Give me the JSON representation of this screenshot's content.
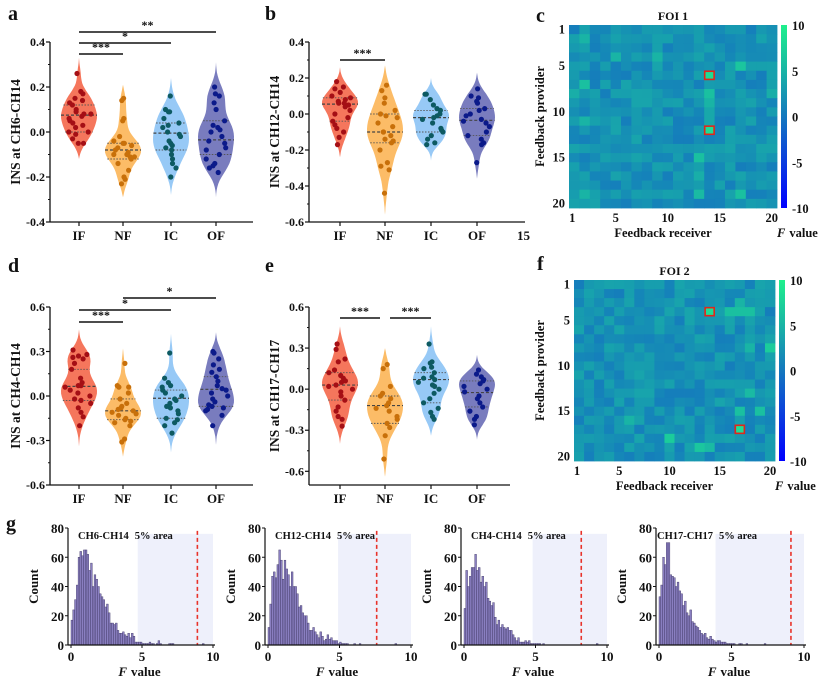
{
  "colors": {
    "IF_fill": "#f46a4e",
    "IF_dot": "#a50f15",
    "NF_fill": "#fcb65a",
    "NF_dot": "#c8700a",
    "IC_fill": "#8ec4f5",
    "IC_dot": "#0d5a62",
    "OF_fill": "#6e71b8",
    "OF_dot": "#0b1a8a",
    "hist_bar": "#8a7fc1",
    "hist_edge": "#3d3562",
    "area": "#eef0fb",
    "threshold": "#e8322a",
    "highlight": "#e0261c"
  },
  "chart_data": [
    {
      "panel": "a",
      "type": "violin",
      "ylabel": "INS at CH6-CH14",
      "categories": [
        "IF",
        "NF",
        "IC",
        "OF"
      ],
      "ylim": [
        -0.4,
        0.4
      ],
      "yticks": [
        "0.4",
        "0.2",
        "0.0",
        "-0.2",
        "-0.4"
      ],
      "yticks_values": [
        0.4,
        0.2,
        0.0,
        -0.2,
        -0.4
      ],
      "violin_range": [
        [
          -0.12,
          0.33
        ],
        [
          -0.29,
          0.21
        ],
        [
          -0.28,
          0.24
        ],
        [
          -0.29,
          0.31
        ]
      ],
      "medians": [
        0.075,
        -0.08,
        -0.005,
        -0.035
      ],
      "points": [
        [
          0.26,
          0.18,
          0.17,
          0.15,
          0.14,
          0.13,
          0.12,
          0.1,
          0.09,
          0.08,
          0.08,
          0.07,
          0.06,
          0.05,
          0.04,
          0.03,
          0.02,
          0.0,
          0.0,
          -0.01,
          -0.03,
          -0.05,
          -0.05
        ],
        [
          0.15,
          0.14,
          0.06,
          0.05,
          -0.02,
          -0.04,
          -0.05,
          -0.05,
          -0.06,
          -0.07,
          -0.08,
          -0.09,
          -0.1,
          -0.1,
          -0.11,
          -0.11,
          -0.12,
          -0.14,
          -0.17,
          -0.2,
          -0.21,
          -0.23
        ],
        [
          0.16,
          0.1,
          0.09,
          0.09,
          0.06,
          0.04,
          0.03,
          0.02,
          0.0,
          -0.01,
          -0.02,
          -0.04,
          -0.05,
          -0.06,
          -0.07,
          -0.08,
          -0.1,
          -0.12,
          -0.14,
          -0.16,
          -0.2
        ],
        [
          0.2,
          0.17,
          0.16,
          0.13,
          0.1,
          0.05,
          0.03,
          0.02,
          0.01,
          0.0,
          -0.02,
          -0.04,
          -0.05,
          -0.07,
          -0.08,
          -0.1,
          -0.12,
          -0.14,
          -0.15,
          -0.16,
          -0.18
        ]
      ],
      "significance": [
        {
          "from": "IF",
          "to": "NF",
          "label": "***",
          "level": 0
        },
        {
          "from": "IF",
          "to": "IC",
          "label": "*",
          "level": 1
        },
        {
          "from": "IF",
          "to": "OF",
          "label": "**",
          "level": 2
        }
      ]
    },
    {
      "panel": "b",
      "type": "violin",
      "ylabel": "INS at CH12-CH14",
      "categories": [
        "IF",
        "NF",
        "IC",
        "OF"
      ],
      "ylim": [
        -0.6,
        0.4
      ],
      "yticks": [
        "0.4",
        "0.2",
        "0.0",
        "-0.2",
        "-0.4",
        "-0.6"
      ],
      "yticks_values": [
        0.4,
        0.2,
        0.0,
        -0.2,
        -0.4,
        -0.6
      ],
      "violin_range": [
        [
          -0.24,
          0.26
        ],
        [
          -0.56,
          0.27
        ],
        [
          -0.26,
          0.2
        ],
        [
          -0.36,
          0.23
        ]
      ],
      "medians": [
        0.055,
        -0.1,
        -0.02,
        -0.035
      ],
      "points": [
        [
          0.18,
          0.15,
          0.14,
          0.12,
          0.1,
          0.09,
          0.08,
          0.07,
          0.06,
          0.06,
          0.05,
          0.04,
          0.02,
          0.0,
          -0.02,
          -0.04,
          -0.06,
          -0.08,
          -0.1,
          -0.13,
          -0.17
        ],
        [
          0.16,
          0.13,
          0.09,
          0.06,
          0.02,
          0.0,
          -0.01,
          -0.02,
          -0.05,
          -0.07,
          -0.1,
          -0.1,
          -0.12,
          -0.14,
          -0.15,
          -0.16,
          -0.2,
          -0.27,
          -0.29,
          -0.31,
          -0.44
        ],
        [
          0.11,
          0.11,
          0.08,
          0.05,
          0.03,
          0.02,
          0.0,
          -0.01,
          -0.02,
          -0.03,
          -0.05,
          -0.08,
          -0.09,
          -0.1,
          -0.12,
          -0.14,
          -0.16,
          -0.17
        ],
        [
          0.14,
          0.1,
          0.09,
          0.07,
          0.06,
          0.03,
          0.02,
          0.0,
          -0.01,
          -0.03,
          -0.04,
          -0.05,
          -0.07,
          -0.1,
          -0.12,
          -0.14,
          -0.16,
          -0.17,
          -0.27
        ]
      ],
      "significance": [
        {
          "from": "IF",
          "to": "NF",
          "label": "***",
          "level": 0
        }
      ]
    },
    {
      "panel": "c",
      "type": "heatmap",
      "title": "FOI 1",
      "xlabel": "Feedback receiver",
      "ylabel": "Feedback provider",
      "xticks": [
        "1",
        "5",
        "10",
        "15",
        "20"
      ],
      "yticks": [
        "1",
        "5",
        "10",
        "15",
        "20"
      ],
      "colorbar_ticks": [
        "10",
        "5",
        "0",
        "-5",
        "-10"
      ],
      "colorbar_label_italic": "F",
      "colorbar_label": "value",
      "vmin": -10,
      "vmax": 10,
      "highlighted_cells": [
        [
          6,
          14
        ],
        [
          12,
          14
        ]
      ],
      "seed": 7,
      "hot_cells": [
        [
          6,
          14,
          8.5
        ],
        [
          12,
          14,
          8.5
        ],
        [
          8,
          14,
          6
        ],
        [
          9,
          14,
          5
        ],
        [
          10,
          14,
          4
        ],
        [
          11,
          14,
          4
        ],
        [
          5,
          17,
          6.5
        ],
        [
          7,
          2,
          6
        ],
        [
          11,
          2,
          5
        ],
        [
          2,
          2,
          5
        ],
        [
          15,
          13,
          6
        ],
        [
          19,
          17,
          6
        ],
        [
          19,
          13,
          5.5
        ],
        [
          19,
          2,
          5
        ],
        [
          4,
          5,
          5
        ],
        [
          4,
          9,
          5
        ],
        [
          8,
          1,
          4.5
        ],
        [
          8,
          20,
          4.5
        ],
        [
          17,
          13,
          4.5
        ]
      ]
    },
    {
      "panel": "f",
      "type": "heatmap",
      "title": "FOI 2",
      "xlabel": "Feedback receiver",
      "ylabel": "Feedback provider",
      "xticks": [
        "1",
        "5",
        "10",
        "15",
        "20"
      ],
      "yticks": [
        "1",
        "5",
        "10",
        "15",
        "20"
      ],
      "colorbar_ticks": [
        "10",
        "5",
        "0",
        "-5",
        "-10"
      ],
      "colorbar_label_italic": "F",
      "colorbar_label": "value",
      "vmin": -10,
      "vmax": 10,
      "highlighted_cells": [
        [
          4,
          14
        ],
        [
          17,
          17
        ]
      ],
      "seed": 13,
      "hot_cells": [
        [
          4,
          14,
          8.5
        ],
        [
          17,
          17,
          8.5
        ],
        [
          4,
          16,
          6
        ],
        [
          4,
          17,
          6
        ],
        [
          4,
          18,
          6
        ],
        [
          8,
          20,
          7
        ],
        [
          15,
          17,
          6
        ],
        [
          15,
          19,
          6
        ],
        [
          13,
          18,
          5.5
        ],
        [
          18,
          10,
          7
        ],
        [
          19,
          13,
          6.5
        ],
        [
          19,
          14,
          5.5
        ],
        [
          16,
          6,
          5
        ],
        [
          3,
          17,
          5
        ],
        [
          8,
          18,
          5
        ]
      ]
    },
    {
      "panel": "d",
      "type": "violin",
      "ylabel": "INS at CH4-CH14",
      "categories": [
        "IF",
        "NF",
        "IC",
        "OF"
      ],
      "ylim": [
        -0.6,
        0.6
      ],
      "yticks": [
        "0.6",
        "0.3",
        "0.0",
        "-0.3",
        "-0.6"
      ],
      "yticks_values": [
        0.6,
        0.3,
        0.0,
        -0.3,
        -0.6
      ],
      "violin_range": [
        [
          -0.34,
          0.45
        ],
        [
          -0.41,
          0.32
        ],
        [
          -0.38,
          0.42
        ],
        [
          -0.33,
          0.43
        ]
      ],
      "medians": [
        0.065,
        -0.1,
        -0.015,
        0.045
      ],
      "points": [
        [
          0.31,
          0.28,
          0.27,
          0.26,
          0.25,
          0.22,
          0.18,
          0.12,
          0.09,
          0.07,
          0.07,
          0.06,
          0.04,
          0.02,
          0.0,
          -0.02,
          -0.03,
          -0.05,
          -0.08,
          -0.11,
          -0.14,
          -0.2
        ],
        [
          0.22,
          0.07,
          0.06,
          0.06,
          0.02,
          -0.02,
          -0.05,
          -0.07,
          -0.08,
          -0.09,
          -0.1,
          -0.11,
          -0.12,
          -0.13,
          -0.15,
          -0.16,
          -0.17,
          -0.18,
          -0.2,
          -0.29,
          -0.31
        ],
        [
          0.29,
          0.12,
          0.09,
          0.07,
          0.06,
          0.04,
          0.02,
          0.0,
          -0.02,
          -0.03,
          -0.05,
          -0.07,
          -0.08,
          -0.1,
          -0.12,
          -0.15,
          -0.16,
          -0.18,
          -0.2,
          -0.25
        ],
        [
          0.3,
          0.29,
          0.25,
          0.21,
          0.18,
          0.16,
          0.13,
          0.1,
          0.07,
          0.05,
          0.04,
          0.02,
          0.0,
          -0.02,
          -0.04,
          -0.06,
          -0.07,
          -0.08,
          -0.09,
          -0.1,
          -0.13,
          -0.2
        ]
      ],
      "significance": [
        {
          "from": "IF",
          "to": "NF",
          "label": "***",
          "level": 0
        },
        {
          "from": "IF",
          "to": "IC",
          "label": "*",
          "level": 1
        },
        {
          "from": "NF",
          "to": "OF",
          "label": "*",
          "level": 2
        }
      ]
    },
    {
      "panel": "e",
      "type": "violin",
      "ylabel": "INS at CH17-CH17",
      "categories": [
        "IF",
        "NF",
        "IC",
        "OF"
      ],
      "ylim": [
        -0.7,
        0.6
      ],
      "yticks": [
        "0.6",
        "0.3",
        "0.0",
        "-0.3",
        "-0.6"
      ],
      "yticks_values": [
        0.6,
        0.3,
        0.0,
        -0.3,
        -0.6
      ],
      "violin_range": [
        [
          -0.4,
          0.46
        ],
        [
          -0.64,
          0.3
        ],
        [
          -0.34,
          0.46
        ],
        [
          -0.37,
          0.25
        ]
      ],
      "medians": [
        0.03,
        -0.12,
        0.07,
        -0.025
      ],
      "points": [
        [
          0.33,
          0.29,
          0.22,
          0.2,
          0.14,
          0.12,
          0.1,
          0.08,
          0.06,
          0.05,
          0.03,
          0.02,
          0.0,
          -0.02,
          -0.05,
          -0.08,
          -0.13,
          -0.16,
          -0.2,
          -0.22,
          -0.27
        ],
        [
          0.18,
          0.15,
          0.02,
          -0.03,
          -0.05,
          -0.07,
          -0.1,
          -0.12,
          -0.14,
          -0.16,
          -0.2,
          -0.22,
          -0.25,
          -0.28,
          -0.34,
          -0.51
        ],
        [
          0.33,
          0.2,
          0.19,
          0.16,
          0.15,
          0.12,
          0.09,
          0.08,
          0.07,
          0.05,
          0.03,
          0.02,
          0.0,
          -0.03,
          -0.07,
          -0.1,
          -0.14,
          -0.17,
          -0.2,
          -0.22
        ],
        [
          0.14,
          0.11,
          0.09,
          0.07,
          0.06,
          0.04,
          0.02,
          0.0,
          -0.02,
          -0.05,
          -0.07,
          -0.1,
          -0.13,
          -0.16,
          -0.2,
          -0.22,
          -0.26
        ]
      ],
      "significance": [
        {
          "from": "IF",
          "to": "NF",
          "label": "***",
          "level": 0
        },
        {
          "from": "NF",
          "to": "IC",
          "label": "***",
          "level": 0
        }
      ]
    },
    {
      "panel": "g1",
      "type": "bar",
      "title": "CH6-CH14",
      "area_label": "5% area",
      "xlabel_italic": "F",
      "xlabel": "value",
      "ylabel": "Count",
      "xlim": [
        0,
        10
      ],
      "ylim": [
        0,
        80
      ],
      "xticks": [
        "0",
        "5",
        "10"
      ],
      "yticks": [
        "80",
        "60",
        "40",
        "20",
        "0"
      ],
      "area_start": 4.7,
      "threshold": 8.9,
      "bin_width": 0.125,
      "values": [
        17,
        24,
        31,
        41,
        60,
        64,
        61,
        65,
        65,
        62,
        51,
        56,
        40,
        48,
        45,
        40,
        35,
        33,
        31,
        26,
        28,
        22,
        15,
        15,
        14,
        15,
        10,
        8,
        8,
        9,
        7,
        6,
        8,
        5,
        8,
        6,
        2,
        2,
        2,
        2,
        1,
        1,
        1,
        1,
        2,
        1,
        1,
        0,
        1,
        3,
        1,
        0,
        0,
        0,
        0,
        1,
        1,
        1,
        0,
        0,
        0,
        0,
        0,
        0,
        0,
        0,
        0,
        0,
        0,
        0,
        0,
        0,
        0,
        0,
        1
      ]
    },
    {
      "panel": "g2",
      "type": "bar",
      "title": "CH12-CH14",
      "area_label": "5% area",
      "xlabel_italic": "F",
      "xlabel": "value",
      "ylabel": "Count",
      "xlim": [
        0,
        10
      ],
      "ylim": [
        0,
        80
      ],
      "xticks": [
        "0",
        "5",
        "10"
      ],
      "yticks": [
        "80",
        "60",
        "40",
        "20",
        "0"
      ],
      "area_start": 4.9,
      "threshold": 7.6,
      "bin_width": 0.125,
      "values": [
        12,
        28,
        47,
        50,
        46,
        55,
        65,
        58,
        45,
        58,
        52,
        48,
        40,
        50,
        40,
        40,
        35,
        26,
        27,
        22,
        20,
        20,
        15,
        10,
        10,
        12,
        9,
        7,
        5,
        9,
        6,
        3,
        4,
        7,
        4,
        5,
        3,
        3,
        3,
        1,
        2,
        1,
        1,
        1,
        1,
        0,
        0,
        0,
        1,
        0,
        0,
        1,
        0,
        0,
        0,
        0,
        0,
        0,
        0,
        0,
        0,
        0,
        0,
        0,
        0,
        0,
        0,
        0,
        0,
        0,
        0,
        1
      ]
    },
    {
      "panel": "g3",
      "type": "bar",
      "title": "CH4-CH14",
      "area_label": "5% area",
      "xlabel_italic": "F",
      "xlabel": "value",
      "ylabel": "Count",
      "xlim": [
        0,
        10
      ],
      "ylim": [
        0,
        80
      ],
      "xticks": [
        "0",
        "5",
        "10"
      ],
      "yticks": [
        "80",
        "60",
        "40",
        "20",
        "0"
      ],
      "area_start": 4.8,
      "threshold": 8.2,
      "bin_width": 0.125,
      "values": [
        25,
        51,
        40,
        47,
        53,
        53,
        62,
        51,
        53,
        43,
        47,
        40,
        43,
        32,
        30,
        27,
        29,
        19,
        14,
        17,
        12,
        14,
        12,
        11,
        12,
        10,
        10,
        7,
        5,
        3,
        5,
        2,
        2,
        2,
        3,
        2,
        3,
        1,
        1,
        1,
        1,
        1,
        1,
        0,
        1,
        0,
        0,
        0,
        0,
        0,
        0,
        0,
        0,
        0,
        0,
        0,
        0,
        0,
        0,
        0,
        0,
        0,
        0,
        0,
        0,
        0,
        0,
        0,
        0,
        0,
        0,
        0,
        0,
        0,
        1
      ]
    },
    {
      "panel": "g4",
      "type": "bar",
      "title": "CH17-CH17",
      "area_label": "5% area",
      "xlabel_italic": "F",
      "xlabel": "value",
      "ylabel": "Count",
      "xlim": [
        0,
        10
      ],
      "ylim": [
        0,
        80
      ],
      "xticks": [
        "0",
        "5",
        "10"
      ],
      "yticks": [
        "80",
        "60",
        "40",
        "20",
        "0"
      ],
      "area_start": 3.9,
      "threshold": 9.1,
      "bin_width": 0.125,
      "values": [
        33,
        41,
        60,
        55,
        70,
        70,
        48,
        47,
        46,
        40,
        43,
        37,
        35,
        27,
        30,
        22,
        20,
        24,
        16,
        15,
        13,
        12,
        10,
        8,
        7,
        8,
        5,
        4,
        6,
        4,
        3,
        2,
        3,
        3,
        2,
        2,
        2,
        1,
        1,
        1,
        1,
        1,
        0,
        0,
        1,
        1,
        0,
        0,
        1,
        0,
        0,
        0,
        0,
        0,
        0,
        0,
        0,
        0,
        1
      ]
    }
  ],
  "panel_labels": [
    "a",
    "b",
    "c",
    "d",
    "e",
    "f",
    "g"
  ],
  "stray_label": "15"
}
